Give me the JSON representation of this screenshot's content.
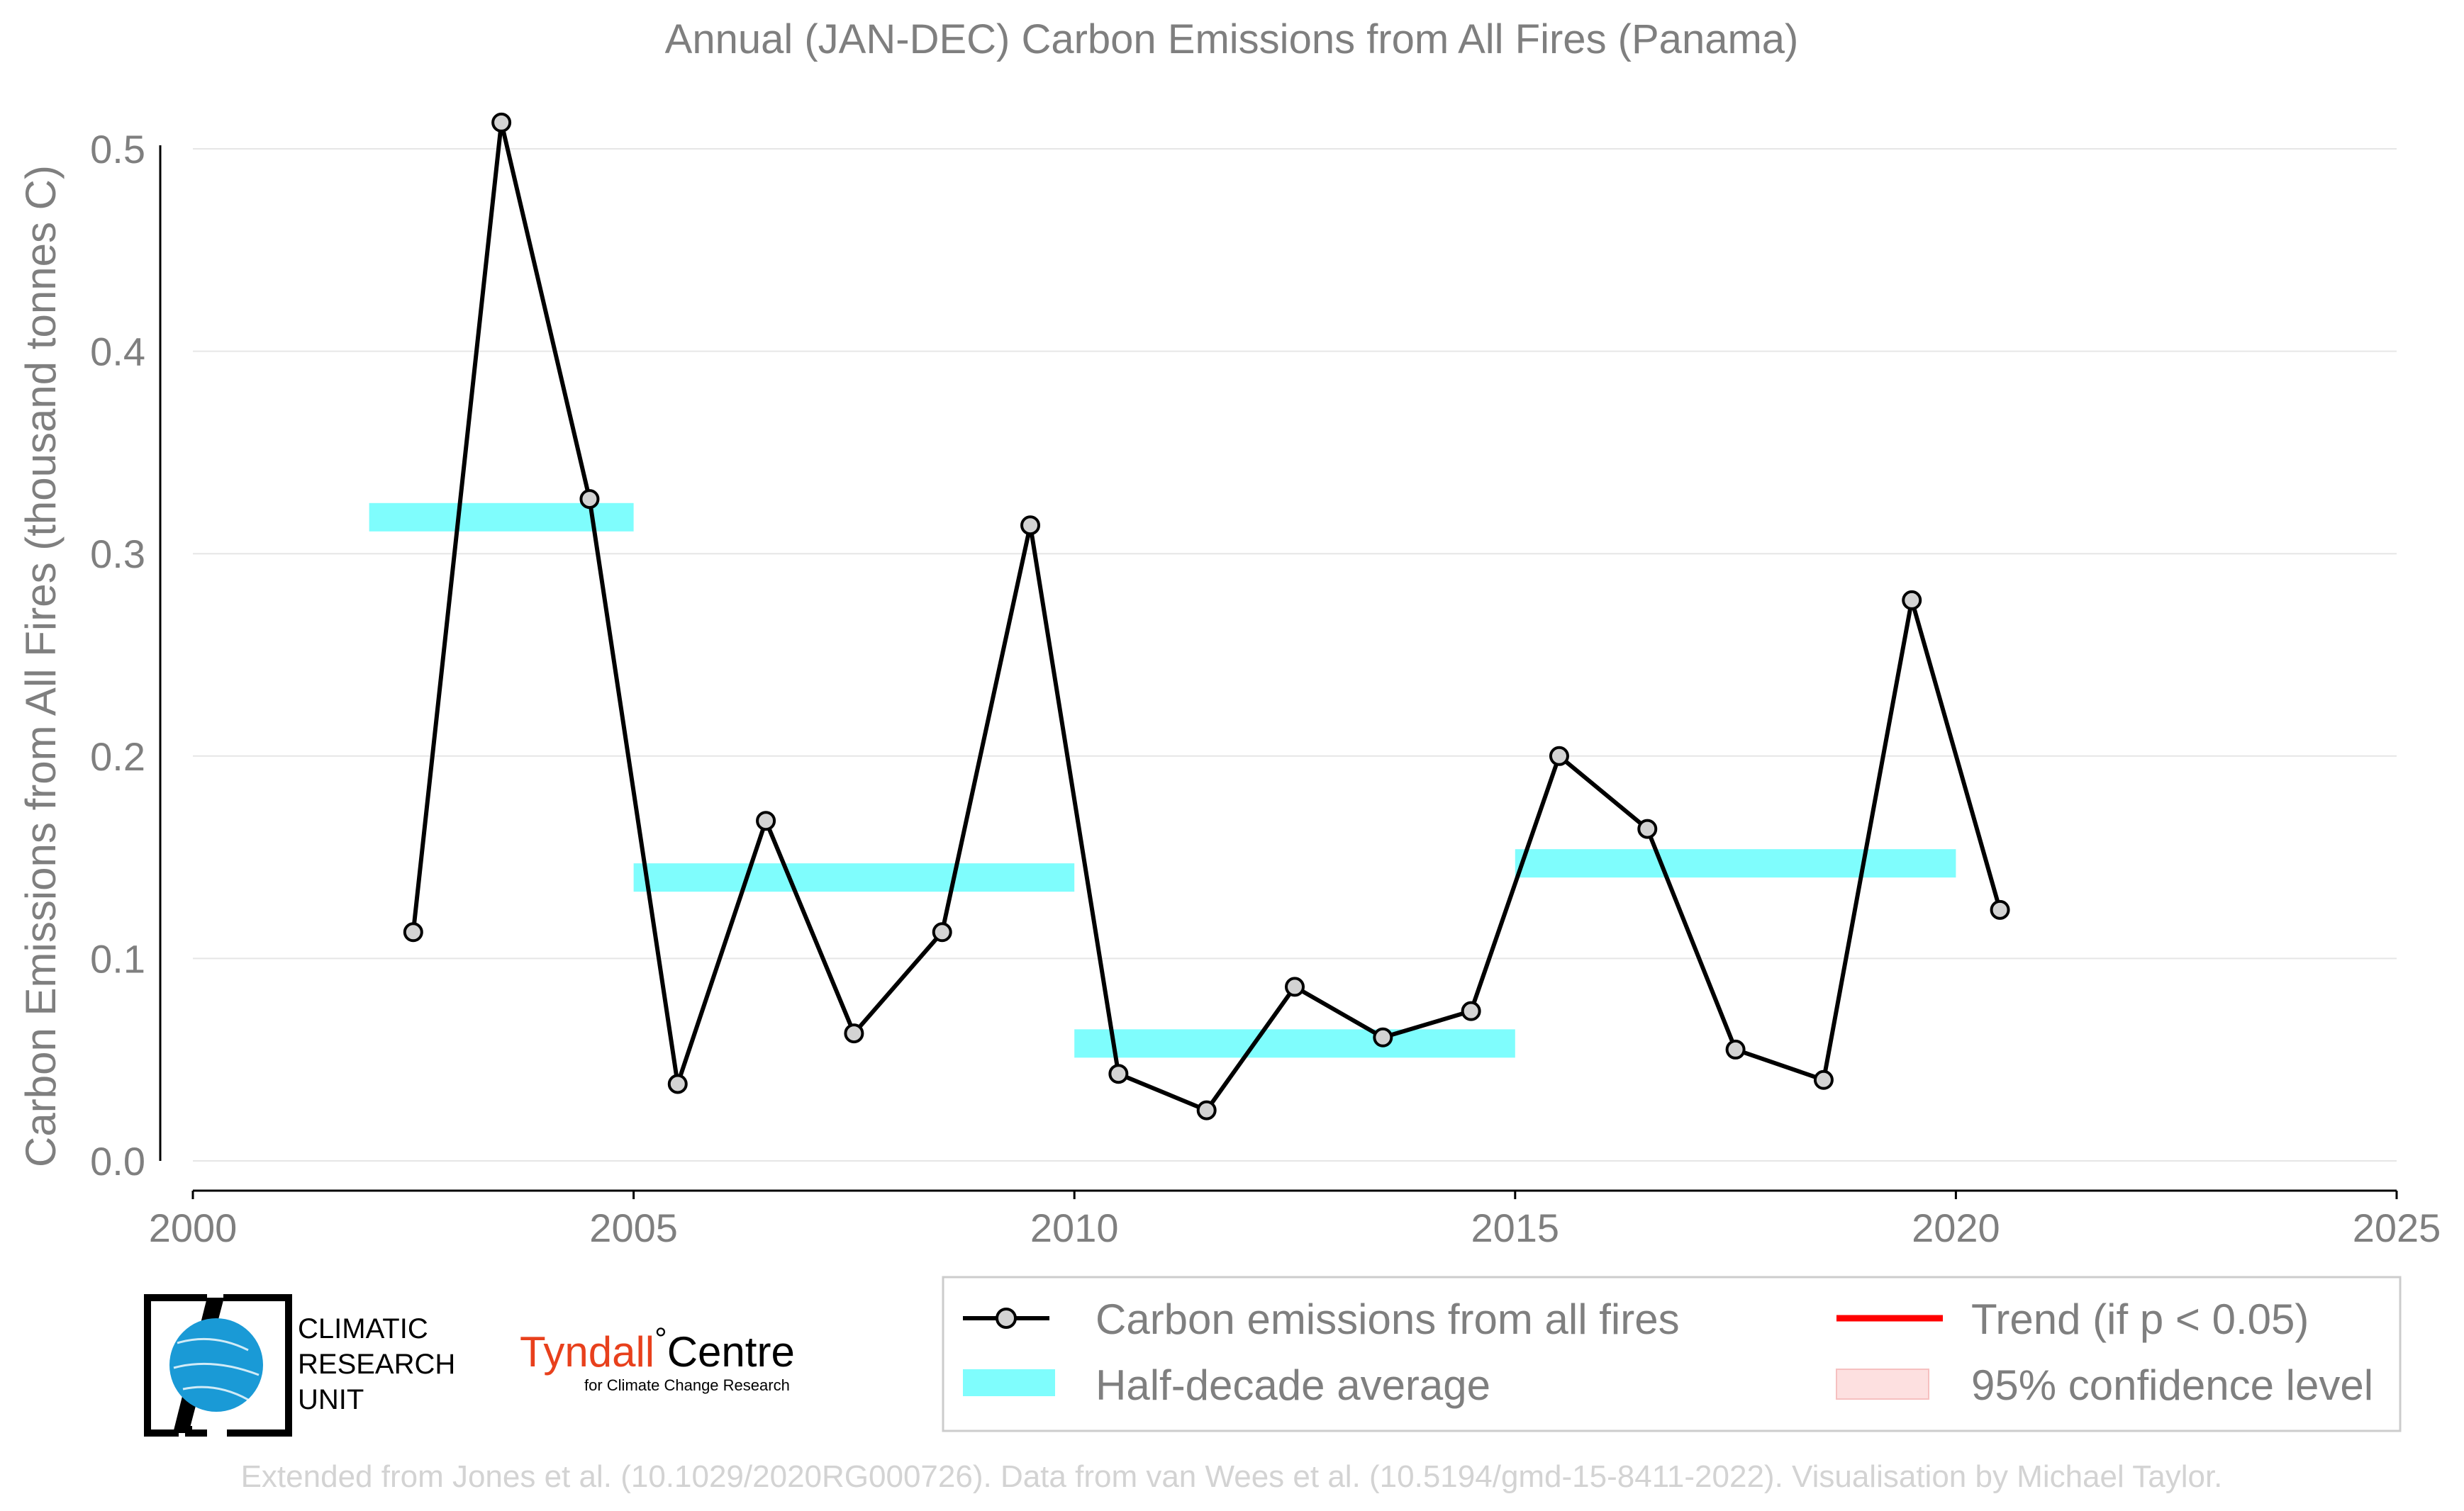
{
  "chart_data": {
    "type": "line",
    "title": "Annual (JAN-DEC) Carbon Emissions from All Fires (Panama)",
    "xlabel": "",
    "ylabel": "Carbon Emissions from All Fires (thousand tonnes C)",
    "xlim": [
      2000,
      2025
    ],
    "ylim": [
      0.0,
      0.5
    ],
    "xticks": [
      "2000",
      "2005",
      "2010",
      "2015",
      "2020",
      "2025"
    ],
    "yticks": [
      "0.0",
      "0.1",
      "0.2",
      "0.3",
      "0.4",
      "0.5"
    ],
    "grid": "horizontal",
    "legend_placement": "bottom-right",
    "series": [
      {
        "name": "Carbon emissions from all fires",
        "color": "#000000",
        "x": [
          2002.5,
          2003.5,
          2004.5,
          2005.5,
          2006.5,
          2007.5,
          2008.5,
          2009.5,
          2010.5,
          2011.5,
          2012.5,
          2013.5,
          2014.5,
          2015.5,
          2016.5,
          2017.5,
          2018.5,
          2019.5,
          2020.5
        ],
        "y": [
          0.113,
          0.513,
          0.327,
          0.038,
          0.168,
          0.063,
          0.113,
          0.314,
          0.043,
          0.025,
          0.086,
          0.061,
          0.074,
          0.2,
          0.164,
          0.055,
          0.04,
          0.277,
          0.124
        ]
      },
      {
        "name": "Half-decade average",
        "color": "#7ffdfd",
        "segments": [
          {
            "x0": 2002,
            "x1": 2005,
            "y": 0.318
          },
          {
            "x0": 2005,
            "x1": 2010,
            "y": 0.14
          },
          {
            "x0": 2010,
            "x1": 2015,
            "y": 0.058
          },
          {
            "x0": 2015,
            "x1": 2020,
            "y": 0.147
          }
        ]
      }
    ],
    "legend": [
      {
        "label": "Carbon emissions from all fires",
        "symbol": "line-marker",
        "color": "#000000"
      },
      {
        "label": "Trend (if p < 0.05)",
        "symbol": "line",
        "color": "#ff0000"
      },
      {
        "label": "Half-decade average",
        "symbol": "patch",
        "color": "#7ffdfd"
      },
      {
        "label": "95% confidence level",
        "symbol": "patch",
        "color": "#fde0e0"
      }
    ]
  },
  "logos": {
    "cru_line1": "CLIMATIC",
    "cru_line2": "RESEARCH",
    "cru_line3": "UNIT",
    "tyndall_name": "Tyndall",
    "tyndall_degree": "°",
    "tyndall_centre": "Centre",
    "tyndall_sub": "for Climate Change Research"
  },
  "credit": "Extended from Jones et al. (10.1029/2020RG000726). Data from van Wees et al. (10.5194/gmd-15-8411-2022). Visualisation by Michael Taylor."
}
